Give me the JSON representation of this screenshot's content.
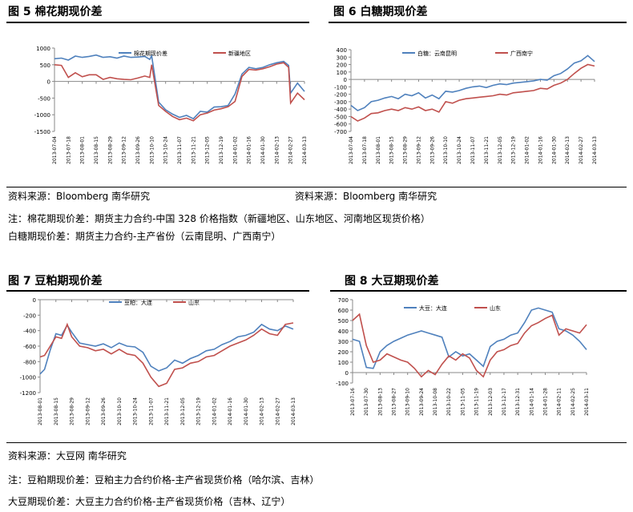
{
  "figures": {
    "fig5": {
      "title": "图 5  棉花期现价差"
    },
    "fig6": {
      "title": "图 6  白糖期现价差"
    },
    "fig7": {
      "title": "图 7  豆粕期现价差"
    },
    "fig8": {
      "title": "图 8  大豆期现价差"
    }
  },
  "notes": {
    "source_left": "资料来源：Bloomberg  南华研究",
    "source_right": "资料来源：Bloomberg  南华研究",
    "cotton_note": "注：棉花期现价差：期货主力合约-中国 328 价格指数（新疆地区、山东地区、河南地区现货价格）",
    "sugar_note": "白糖期现价差：期货主力合约-主产省份（云南昆明、广西南宁）",
    "source_bottom": "资料来源：大豆网  南华研究",
    "meal_note": "注：豆粕期现价差：豆粕主力合约价格-主产省现货价格（哈尔滨、吉林）",
    "soy_note": "大豆期现价差：大豆主力合约价格-主产省现货价格（吉林、辽宁）"
  },
  "chart_data": [
    {
      "id": "cotton",
      "type": "line",
      "title": "",
      "ylim": [
        -1500,
        1000
      ],
      "yticks": [
        1000,
        500,
        0,
        -500,
        -1000,
        -1500
      ],
      "ytick_labels": [
        "1000",
        "500",
        "0",
        "-500",
        "-1000",
        "-1500"
      ],
      "xticks": [
        "2013-07-04",
        "2013-07-18",
        "2013-08-01",
        "2013-08-15",
        "2013-08-29",
        "2013-09-12",
        "2013-09-26",
        "2013-10-10",
        "2013-10-24",
        "2013-11-07",
        "2013-11-21",
        "2013-12-05",
        "2013-12-19",
        "2014-01-02",
        "2014-01-16",
        "2014-01-30",
        "2014-02-13",
        "2014-02-27",
        "2014-03-13"
      ],
      "legend_position": "top",
      "grid": false,
      "colors": [
        "#4f81bd",
        "#c0504d"
      ],
      "series": [
        {
          "name": "棉花期现价差",
          "x": [
            "2013-07-04",
            "2013-07-11",
            "2013-07-18",
            "2013-07-25",
            "2013-08-01",
            "2013-08-08",
            "2013-08-15",
            "2013-08-22",
            "2013-08-29",
            "2013-09-05",
            "2013-09-12",
            "2013-09-19",
            "2013-09-26",
            "2013-10-03",
            "2013-10-08",
            "2013-10-10",
            "2013-10-17",
            "2013-10-24",
            "2013-10-31",
            "2013-11-07",
            "2013-11-14",
            "2013-11-21",
            "2013-11-28",
            "2013-12-05",
            "2013-12-12",
            "2013-12-19",
            "2013-12-26",
            "2014-01-02",
            "2014-01-09",
            "2014-01-16",
            "2014-01-23",
            "2014-01-30",
            "2014-02-06",
            "2014-02-13",
            "2014-02-20",
            "2014-02-25",
            "2014-02-27",
            "2014-03-06",
            "2014-03-13"
          ],
          "values": [
            680,
            700,
            640,
            760,
            720,
            750,
            790,
            720,
            740,
            700,
            760,
            720,
            730,
            750,
            660,
            770,
            -620,
            -850,
            -980,
            -1080,
            -1020,
            -1120,
            -900,
            -920,
            -770,
            -760,
            -720,
            -380,
            220,
            420,
            380,
            420,
            500,
            560,
            600,
            480,
            -350,
            -50,
            -300
          ]
        },
        {
          "name": "新疆地区",
          "x": [
            "2013-07-04",
            "2013-07-11",
            "2013-07-18",
            "2013-07-25",
            "2013-08-01",
            "2013-08-08",
            "2013-08-15",
            "2013-08-22",
            "2013-08-29",
            "2013-09-05",
            "2013-09-12",
            "2013-09-19",
            "2013-09-26",
            "2013-10-03",
            "2013-10-08",
            "2013-10-10",
            "2013-10-17",
            "2013-10-24",
            "2013-10-31",
            "2013-11-07",
            "2013-11-14",
            "2013-11-21",
            "2013-11-28",
            "2013-12-05",
            "2013-12-12",
            "2013-12-19",
            "2013-12-26",
            "2014-01-02",
            "2014-01-09",
            "2014-01-16",
            "2014-01-23",
            "2014-01-30",
            "2014-02-06",
            "2014-02-13",
            "2014-02-20",
            "2014-02-25",
            "2014-02-27",
            "2014-03-06",
            "2014-03-13"
          ],
          "values": [
            500,
            480,
            120,
            260,
            140,
            200,
            200,
            60,
            120,
            80,
            60,
            50,
            100,
            160,
            120,
            500,
            -720,
            -900,
            -1050,
            -1150,
            -1100,
            -1180,
            -1000,
            -950,
            -860,
            -820,
            -760,
            -600,
            150,
            360,
            340,
            380,
            440,
            520,
            560,
            420,
            -650,
            -350,
            -550
          ]
        }
      ]
    },
    {
      "id": "sugar",
      "type": "line",
      "title": "",
      "ylim": [
        -700,
        400
      ],
      "yticks": [
        400,
        300,
        200,
        100,
        0,
        -100,
        -200,
        -300,
        -400,
        -500,
        -600,
        -700
      ],
      "ytick_labels": [
        "400",
        "300",
        "200",
        "100",
        "0",
        "-100",
        "-200",
        "-300",
        "-400",
        "-500",
        "-600",
        "-700"
      ],
      "xticks": [
        "2013-07-04",
        "2013-07-18",
        "2013-08-01",
        "2013-08-15",
        "2013-08-29",
        "2013-09-12",
        "2013-09-26",
        "2013-10-10",
        "2013-10-24",
        "2013-11-07",
        "2013-11-21",
        "2013-12-05",
        "2013-12-19",
        "2014-01-02",
        "2014-01-16",
        "2014-01-30",
        "2014-02-13",
        "2014-02-27",
        "2014-03-13"
      ],
      "legend_position": "top",
      "grid": false,
      "colors": [
        "#4f81bd",
        "#c0504d"
      ],
      "series": [
        {
          "name": "白糖：云南昆明",
          "x": [
            "2013-07-04",
            "2013-07-11",
            "2013-07-18",
            "2013-07-25",
            "2013-08-01",
            "2013-08-08",
            "2013-08-15",
            "2013-08-22",
            "2013-08-29",
            "2013-09-05",
            "2013-09-12",
            "2013-09-19",
            "2013-09-26",
            "2013-10-03",
            "2013-10-10",
            "2013-10-17",
            "2013-10-24",
            "2013-10-31",
            "2013-11-07",
            "2013-11-14",
            "2013-11-21",
            "2013-11-28",
            "2013-12-05",
            "2013-12-12",
            "2013-12-19",
            "2013-12-26",
            "2014-01-02",
            "2014-01-09",
            "2014-01-16",
            "2014-01-23",
            "2014-01-30",
            "2014-02-06",
            "2014-02-13",
            "2014-02-20",
            "2014-02-27",
            "2014-03-06",
            "2014-03-13"
          ],
          "values": [
            -350,
            -420,
            -380,
            -300,
            -280,
            -250,
            -230,
            -260,
            -200,
            -220,
            -180,
            -250,
            -210,
            -260,
            -160,
            -170,
            -150,
            -120,
            -100,
            -90,
            -110,
            -80,
            -60,
            -70,
            -50,
            -40,
            -30,
            -20,
            0,
            -10,
            50,
            80,
            140,
            220,
            250,
            320,
            240
          ]
        },
        {
          "name": "广西南宁",
          "x": [
            "2013-07-04",
            "2013-07-11",
            "2013-07-18",
            "2013-07-25",
            "2013-08-01",
            "2013-08-08",
            "2013-08-15",
            "2013-08-22",
            "2013-08-29",
            "2013-09-05",
            "2013-09-12",
            "2013-09-19",
            "2013-09-26",
            "2013-10-03",
            "2013-10-10",
            "2013-10-17",
            "2013-10-24",
            "2013-10-31",
            "2013-11-07",
            "2013-11-14",
            "2013-11-21",
            "2013-11-28",
            "2013-12-05",
            "2013-12-12",
            "2013-12-19",
            "2013-12-26",
            "2014-01-02",
            "2014-01-09",
            "2014-01-16",
            "2014-01-23",
            "2014-01-30",
            "2014-02-06",
            "2014-02-13",
            "2014-02-20",
            "2014-02-27",
            "2014-03-06",
            "2014-03-13"
          ],
          "values": [
            -500,
            -560,
            -520,
            -460,
            -450,
            -420,
            -400,
            -420,
            -380,
            -400,
            -370,
            -420,
            -400,
            -440,
            -300,
            -320,
            -280,
            -260,
            -250,
            -240,
            -230,
            -220,
            -200,
            -210,
            -180,
            -170,
            -160,
            -150,
            -120,
            -130,
            -80,
            -50,
            0,
            80,
            150,
            200,
            180
          ]
        }
      ]
    },
    {
      "id": "soymeal",
      "type": "line",
      "title": "",
      "ylim": [
        -1200,
        0
      ],
      "yticks": [
        0,
        -200,
        -400,
        -600,
        -800,
        -1000,
        -1200
      ],
      "ytick_labels": [
        "0",
        "-200",
        "-400",
        "-600",
        "-800",
        "-1000",
        "-1200"
      ],
      "xticks": [
        "2013-08-01",
        "2013-08-15",
        "2013-08-29",
        "2013-09-12",
        "2013-09-26",
        "2013-10-10",
        "2013-10-24",
        "2013-11-07",
        "2013-11-21",
        "2013-12-05",
        "2013-12-19",
        "2014-01-02",
        "2014-01-16",
        "2014-01-30",
        "2014-02-13",
        "2014-02-27",
        "2014-03-13"
      ],
      "legend_position": "top",
      "grid": false,
      "colors": [
        "#4f81bd",
        "#c0504d"
      ],
      "series": [
        {
          "name": "豆粕：大连",
          "x": [
            "2013-08-01",
            "2013-08-05",
            "2013-08-10",
            "2013-08-15",
            "2013-08-20",
            "2013-08-25",
            "2013-08-29",
            "2013-09-05",
            "2013-09-12",
            "2013-09-19",
            "2013-09-26",
            "2013-10-03",
            "2013-10-10",
            "2013-10-17",
            "2013-10-24",
            "2013-10-31",
            "2013-11-07",
            "2013-11-14",
            "2013-11-21",
            "2013-11-28",
            "2013-12-05",
            "2013-12-12",
            "2013-12-19",
            "2013-12-26",
            "2014-01-02",
            "2014-01-09",
            "2014-01-16",
            "2014-01-23",
            "2014-01-30",
            "2014-02-06",
            "2014-02-13",
            "2014-02-20",
            "2014-02-27",
            "2014-03-06",
            "2014-03-13"
          ],
          "values": [
            -960,
            -900,
            -650,
            -440,
            -460,
            -330,
            -420,
            -560,
            -580,
            -600,
            -570,
            -620,
            -560,
            -600,
            -610,
            -680,
            -860,
            -920,
            -880,
            -780,
            -820,
            -760,
            -720,
            -660,
            -640,
            -580,
            -540,
            -480,
            -460,
            -420,
            -320,
            -380,
            -400,
            -340,
            -380
          ]
        },
        {
          "name": "山东",
          "x": [
            "2013-08-01",
            "2013-08-05",
            "2013-08-10",
            "2013-08-15",
            "2013-08-20",
            "2013-08-25",
            "2013-08-29",
            "2013-09-05",
            "2013-09-12",
            "2013-09-19",
            "2013-09-26",
            "2013-10-03",
            "2013-10-10",
            "2013-10-17",
            "2013-10-24",
            "2013-10-31",
            "2013-11-07",
            "2013-11-14",
            "2013-11-21",
            "2013-11-28",
            "2013-12-05",
            "2013-12-12",
            "2013-12-19",
            "2013-12-26",
            "2014-01-02",
            "2014-01-09",
            "2014-01-16",
            "2014-01-23",
            "2014-01-30",
            "2014-02-06",
            "2014-02-13",
            "2014-02-20",
            "2014-02-27",
            "2014-03-06",
            "2014-03-13"
          ],
          "values": [
            -740,
            -720,
            -600,
            -480,
            -500,
            -320,
            -480,
            -600,
            -620,
            -660,
            -640,
            -700,
            -640,
            -700,
            -720,
            -820,
            -1000,
            -1120,
            -1080,
            -900,
            -880,
            -820,
            -800,
            -740,
            -720,
            -660,
            -600,
            -560,
            -520,
            -460,
            -380,
            -440,
            -460,
            -320,
            -300
          ]
        }
      ]
    },
    {
      "id": "soybean",
      "type": "line",
      "title": "",
      "ylim": [
        -100,
        700
      ],
      "yticks": [
        700,
        600,
        500,
        400,
        300,
        200,
        100,
        0,
        -100
      ],
      "ytick_labels": [
        "700",
        "600",
        "500",
        "400",
        "300",
        "200",
        "100",
        "0",
        "-100"
      ],
      "xticks": [
        "2013-07-16",
        "2013-07-30",
        "2013-08-13",
        "2013-08-27",
        "2013-09-10",
        "2013-09-24",
        "2013-10-08",
        "2013-10-22",
        "2013-11-05",
        "2013-11-19",
        "2013-12-03",
        "2013-12-17",
        "2013-12-31",
        "2014-01-14",
        "2014-01-28",
        "2014-02-11",
        "2014-02-25",
        "2014-03-11"
      ],
      "legend_position": "top",
      "grid": false,
      "colors": [
        "#4f81bd",
        "#c0504d"
      ],
      "series": [
        {
          "name": "大豆：大连",
          "x": [
            "2013-07-16",
            "2013-07-23",
            "2013-07-30",
            "2013-08-06",
            "2013-08-13",
            "2013-08-20",
            "2013-08-27",
            "2013-09-03",
            "2013-09-10",
            "2013-09-17",
            "2013-09-24",
            "2013-10-01",
            "2013-10-08",
            "2013-10-15",
            "2013-10-22",
            "2013-10-29",
            "2013-11-05",
            "2013-11-12",
            "2013-11-19",
            "2013-11-26",
            "2013-12-03",
            "2013-12-10",
            "2013-12-17",
            "2013-12-24",
            "2013-12-31",
            "2014-01-07",
            "2014-01-14",
            "2014-01-21",
            "2014-01-28",
            "2014-02-04",
            "2014-02-11",
            "2014-02-18",
            "2014-02-25",
            "2014-03-04",
            "2014-03-11"
          ],
          "values": [
            320,
            300,
            50,
            40,
            200,
            260,
            300,
            330,
            360,
            380,
            400,
            380,
            360,
            340,
            150,
            200,
            160,
            180,
            120,
            60,
            250,
            300,
            320,
            360,
            380,
            480,
            600,
            620,
            600,
            580,
            420,
            400,
            360,
            300,
            220
          ]
        },
        {
          "name": "山东",
          "x": [
            "2013-07-16",
            "2013-07-23",
            "2013-07-30",
            "2013-08-06",
            "2013-08-13",
            "2013-08-20",
            "2013-08-27",
            "2013-09-03",
            "2013-09-10",
            "2013-09-17",
            "2013-09-24",
            "2013-10-01",
            "2013-10-08",
            "2013-10-15",
            "2013-10-22",
            "2013-10-29",
            "2013-11-05",
            "2013-11-12",
            "2013-11-19",
            "2013-11-26",
            "2013-12-03",
            "2013-12-10",
            "2013-12-17",
            "2013-12-24",
            "2013-12-31",
            "2014-01-07",
            "2014-01-14",
            "2014-01-21",
            "2014-01-28",
            "2014-02-04",
            "2014-02-11",
            "2014-02-18",
            "2014-02-25",
            "2014-03-04",
            "2014-03-11"
          ],
          "values": [
            500,
            560,
            260,
            100,
            120,
            180,
            150,
            120,
            100,
            40,
            -40,
            20,
            -20,
            80,
            160,
            120,
            180,
            140,
            20,
            -40,
            120,
            200,
            220,
            260,
            280,
            380,
            450,
            480,
            520,
            550,
            360,
            420,
            400,
            380,
            460
          ]
        }
      ]
    }
  ]
}
